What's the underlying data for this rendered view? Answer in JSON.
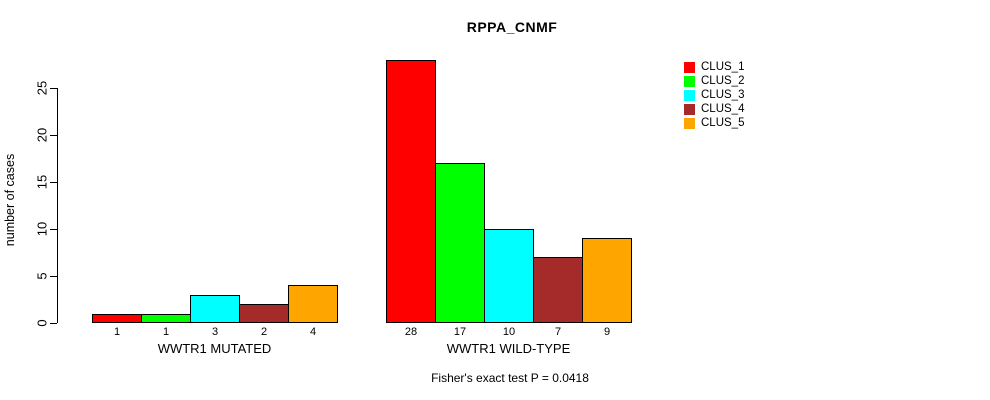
{
  "chart_data": {
    "type": "bar",
    "title": "RPPA_CNMF",
    "xlabel": "",
    "ylabel": "number of cases",
    "ylim": [
      0,
      25
    ],
    "yticks": [
      0,
      5,
      10,
      15,
      20,
      25
    ],
    "grid": false,
    "legend_position": "top-right",
    "categories": [
      "WWTR1 MUTATED",
      "WWTR1 WILD-TYPE"
    ],
    "series": [
      {
        "name": "CLUS_1",
        "color": "#ff0000",
        "values": [
          1,
          28
        ]
      },
      {
        "name": "CLUS_2",
        "color": "#00ff00",
        "values": [
          1,
          17
        ]
      },
      {
        "name": "CLUS_3",
        "color": "#00ffff",
        "values": [
          3,
          10
        ]
      },
      {
        "name": "CLUS_4",
        "color": "#a52a2a",
        "values": [
          2,
          7
        ]
      },
      {
        "name": "CLUS_5",
        "color": "#ffa500",
        "values": [
          4,
          9
        ]
      }
    ],
    "bar_value_labels_shown": true,
    "annotation": "Fisher's exact test P = 0.0418"
  }
}
